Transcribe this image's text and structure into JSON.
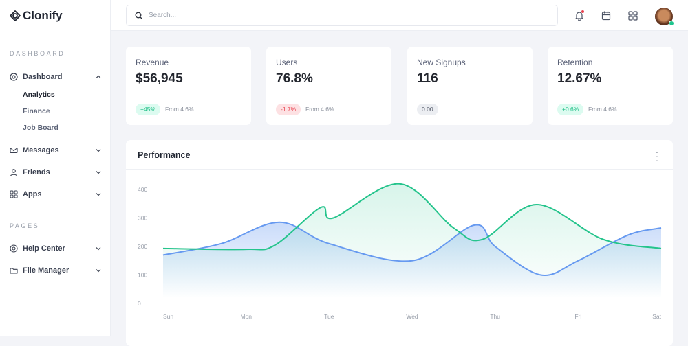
{
  "brand": "Clonify",
  "sidebar": {
    "section_dashboard": "DASHBOARD",
    "section_pages": "PAGES",
    "items": [
      {
        "label": "Dashboard",
        "icon": "dashboard-icon",
        "expanded": true,
        "children": [
          "Analytics",
          "Finance",
          "Job Board"
        ],
        "active_child": "Analytics"
      },
      {
        "label": "Messages",
        "icon": "mail-icon"
      },
      {
        "label": "Friends",
        "icon": "user-icon"
      },
      {
        "label": "Apps",
        "icon": "grid-icon"
      },
      {
        "label": "Help Center",
        "icon": "lifebuoy-icon"
      },
      {
        "label": "File Manager",
        "icon": "folder-icon"
      }
    ]
  },
  "topbar": {
    "search_placeholder": "Search...",
    "icons": [
      "bell-icon",
      "calendar-icon",
      "apps-grid-icon"
    ],
    "notification_dot": true,
    "user_online": true
  },
  "stats": [
    {
      "label": "Revenue",
      "value": "$56,945",
      "badge": "+45%",
      "trend": "up",
      "from": "From 4.6%"
    },
    {
      "label": "Users",
      "value": "76.8%",
      "badge": "-1.7%",
      "trend": "down",
      "from": "From 4.6%"
    },
    {
      "label": "New Signups",
      "value": "116",
      "badge": "0.00",
      "trend": "neutral",
      "from": ""
    },
    {
      "label": "Retention",
      "value": "12.67%",
      "badge": "+0.6%",
      "trend": "up",
      "from": "From 4.6%"
    }
  ],
  "colors": {
    "up_bg": "#dcfbf0",
    "up_text": "#1fbf86",
    "down_bg": "#fde1e3",
    "down_text": "#e8424f",
    "neutral_bg": "#eceef2",
    "neutral_text": "#4a5060",
    "blue": "#6699f0",
    "green": "#25c48c"
  },
  "performance": {
    "title": "Performance",
    "chart_data": {
      "type": "area",
      "categories": [
        "Sun",
        "Mon",
        "Tue",
        "Wed",
        "Thu",
        "Fri",
        "Sat"
      ],
      "yticks": [
        0,
        100,
        200,
        300,
        400
      ],
      "ylim": [
        0,
        400
      ],
      "grid": false,
      "series": [
        {
          "color": "#6699f0",
          "points": [
            [
              0,
              170
            ],
            [
              0.7,
              210
            ],
            [
              1.4,
              285
            ],
            [
              2,
              210
            ],
            [
              3,
              150
            ],
            [
              3.75,
              275
            ],
            [
              4,
              200
            ],
            [
              4.55,
              100
            ],
            [
              5,
              150
            ],
            [
              5.6,
              240
            ],
            [
              6,
              265
            ]
          ]
        },
        {
          "color": "#25c48c",
          "points": [
            [
              0,
              193
            ],
            [
              1,
              190
            ],
            [
              1.35,
              205
            ],
            [
              1.9,
              337
            ],
            [
              2.05,
              300
            ],
            [
              2.85,
              420
            ],
            [
              3.5,
              265
            ],
            [
              3.85,
              225
            ],
            [
              4.5,
              347
            ],
            [
              5.3,
              225
            ],
            [
              6,
              193
            ]
          ]
        }
      ]
    }
  }
}
